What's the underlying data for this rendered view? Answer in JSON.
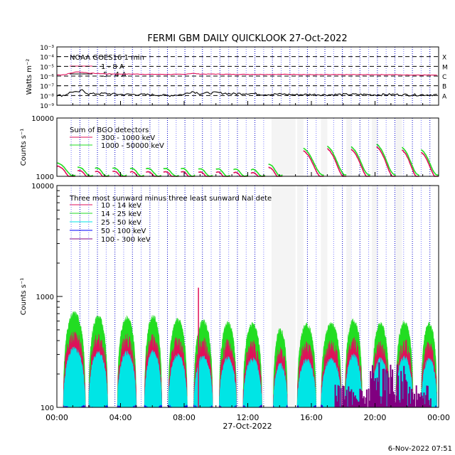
{
  "title": "FERMI GBM DAILY QUICKLOOK  27-Oct-2022",
  "footer_timestamp": "6-Nov-2022 07:51",
  "chart_data": [
    {
      "type": "line",
      "panel": "goes",
      "ylabel": "Watts m⁻²",
      "yscale": "log",
      "ylim": [
        1e-09,
        0.001
      ],
      "y_tick_labels": [
        "10⁻³",
        "10⁻⁴",
        "10⁻⁵",
        "10⁻⁶",
        "10⁻⁷",
        "10⁻⁸",
        "10⁻⁹"
      ],
      "flare_class_levels": [
        {
          "label": "X",
          "value": 0.0001
        },
        {
          "label": "M",
          "value": 1e-05
        },
        {
          "label": "C",
          "value": 1e-06
        },
        {
          "label": "B",
          "value": 1e-07
        },
        {
          "label": "A",
          "value": 1e-08
        }
      ],
      "legend_title": "NOAA GOES16 1 min",
      "x": [
        0,
        0.5,
        1,
        1.3,
        1.6,
        1.8,
        2,
        3,
        4,
        5,
        6,
        7,
        8,
        8.5,
        9,
        10,
        11,
        12,
        13,
        14,
        15,
        16,
        17,
        18,
        19,
        20,
        21,
        22,
        23,
        24
      ],
      "series": [
        {
          "name": "1 - 8 A",
          "color": "#e0105a",
          "values": [
            1.3e-06,
            1.4e-06,
            2.2e-06,
            2.8e-06,
            2.4e-06,
            2.3e-06,
            2e-06,
            1.7e-06,
            1.6e-06,
            1.6e-06,
            1.5e-06,
            1.5e-06,
            1.5e-06,
            1.9e-06,
            1.6e-06,
            1.6e-06,
            1.5e-06,
            1.5e-06,
            1.5e-06,
            1.5e-06,
            1.5e-06,
            1.4e-06,
            1.4e-06,
            1.4e-06,
            1.4e-06,
            1.4e-06,
            1.4e-06,
            1.3e-06,
            1.3e-06,
            1.3e-06
          ]
        },
        {
          "name": ".5 - 4 A",
          "color": "#000000",
          "values": [
            1e-08,
            1.1e-08,
            2.5e-08,
            2e-08,
            3.5e-08,
            2.2e-08,
            1.5e-08,
            1.6e-08,
            1.3e-08,
            1.3e-08,
            1.2e-08,
            1e-08,
            1.3e-08,
            2.6e-08,
            1.6e-08,
            2e-08,
            1.5e-08,
            1.7e-08,
            1.3e-08,
            1.4e-08,
            1.2e-08,
            1.3e-08,
            1.2e-08,
            1.3e-08,
            1.3e-08,
            1.2e-08,
            1.3e-08,
            1.2e-08,
            1.2e-08,
            1.2e-08
          ]
        }
      ]
    },
    {
      "type": "line",
      "panel": "bgo",
      "ylabel": "Counts s⁻¹",
      "yscale": "log",
      "ylim": [
        1000,
        10000
      ],
      "y_tick_labels": [
        "10000",
        "1000"
      ],
      "legend_title": "Sum of BGO detectors",
      "orbits": [
        {
          "start": 0.0,
          "end": 1.2,
          "peak": 1700
        },
        {
          "start": 1.3,
          "end": 2.3,
          "peak": 1400
        },
        {
          "start": 2.4,
          "end": 3.3,
          "peak": 1350
        },
        {
          "start": 3.5,
          "end": 4.4,
          "peak": 1350
        },
        {
          "start": 4.6,
          "end": 5.5,
          "peak": 1320
        },
        {
          "start": 5.6,
          "end": 6.6,
          "peak": 1320
        },
        {
          "start": 6.7,
          "end": 7.7,
          "peak": 1320
        },
        {
          "start": 7.8,
          "end": 8.7,
          "peak": 1320
        },
        {
          "start": 8.9,
          "end": 9.8,
          "peak": 1300
        },
        {
          "start": 10.0,
          "end": 10.9,
          "peak": 1300
        },
        {
          "start": 11.1,
          "end": 12.0,
          "peak": 1280
        },
        {
          "start": 12.2,
          "end": 13.1,
          "peak": 1250
        },
        {
          "start": 13.3,
          "end": 14.2,
          "peak": 1600
        },
        {
          "start": 15.5,
          "end": 16.8,
          "peak": 3200
        },
        {
          "start": 17.0,
          "end": 18.2,
          "peak": 3500
        },
        {
          "start": 18.5,
          "end": 19.7,
          "peak": 3400
        },
        {
          "start": 20.1,
          "end": 21.3,
          "peak": 3800
        },
        {
          "start": 21.7,
          "end": 22.8,
          "peak": 3300
        },
        {
          "start": 22.9,
          "end": 24.0,
          "peak": 3000
        }
      ],
      "series": [
        {
          "name": "300 - 1000 keV",
          "color": "#e0105a",
          "scale": 0.92
        },
        {
          "name": "1000 - 50000 keV",
          "color": "#22dd22",
          "scale": 1.0
        }
      ]
    },
    {
      "type": "area",
      "panel": "nai",
      "ylabel": "Counts s⁻¹",
      "yscale": "log",
      "ylim": [
        100,
        10000
      ],
      "y_tick_labels": [
        "10000",
        "1000",
        "100"
      ],
      "legend_title": "Three most sunward minus three least sunward NaI detectors",
      "humps": [
        {
          "start": 0.4,
          "end": 1.8,
          "peak": 700
        },
        {
          "start": 2.0,
          "end": 3.2,
          "peak": 650
        },
        {
          "start": 3.8,
          "end": 5.0,
          "peak": 640
        },
        {
          "start": 5.5,
          "end": 6.6,
          "peak": 650
        },
        {
          "start": 7.0,
          "end": 8.2,
          "peak": 610
        },
        {
          "start": 8.6,
          "end": 9.8,
          "peak": 590
        },
        {
          "start": 10.2,
          "end": 11.3,
          "peak": 570
        },
        {
          "start": 11.7,
          "end": 12.9,
          "peak": 560
        },
        {
          "start": 13.6,
          "end": 14.5,
          "peak": 500
        },
        {
          "start": 15.1,
          "end": 16.3,
          "peak": 550
        },
        {
          "start": 16.6,
          "end": 17.9,
          "peak": 560
        },
        {
          "start": 18.1,
          "end": 19.2,
          "peak": 600
        },
        {
          "start": 19.8,
          "end": 20.9,
          "peak": 560
        },
        {
          "start": 21.3,
          "end": 22.4,
          "peak": 580
        },
        {
          "start": 22.9,
          "end": 23.9,
          "peak": 560
        }
      ],
      "series": [
        {
          "name": "10 - 14 keV",
          "color": "#e0105a",
          "scale": 0.62
        },
        {
          "name": "14 - 25 keV",
          "color": "#22dd22",
          "scale": 1.0
        },
        {
          "name": "25 - 50 keV",
          "color": "#00e5e5",
          "scale": 0.48
        },
        {
          "name": "50 - 100 keV",
          "color": "#0000ff",
          "scale": 0.13
        },
        {
          "name": "100 - 300 keV",
          "color": "#800080",
          "scale": 0.12
        }
      ]
    }
  ],
  "x_axis": {
    "range_hours": [
      0,
      24
    ],
    "tick_labels": [
      "00:00",
      "04:00",
      "08:00",
      "12:00",
      "16:00",
      "20:00",
      "00:00"
    ],
    "date_label": "27-Oct-2022"
  },
  "saa_passes": [
    {
      "start": 13.5,
      "end": 15.0
    },
    {
      "start": 15.1,
      "end": 15.5
    },
    {
      "start": 16.6,
      "end": 17.0
    },
    {
      "start": 18.2,
      "end": 18.5
    },
    {
      "start": 19.8,
      "end": 20.1
    },
    {
      "start": 21.3,
      "end": 21.7
    }
  ]
}
